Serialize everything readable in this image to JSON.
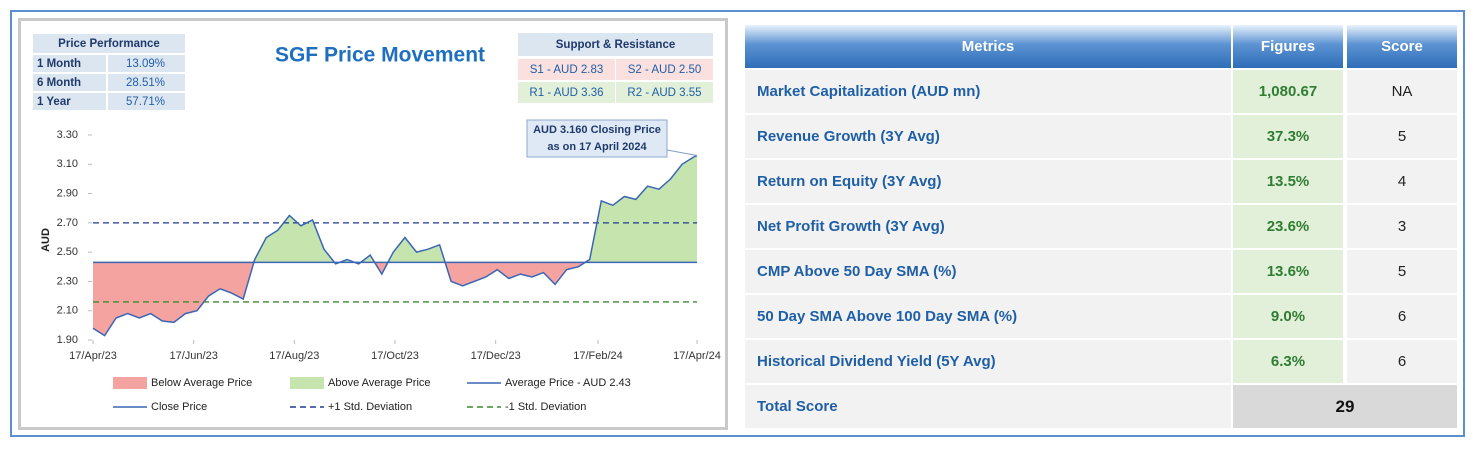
{
  "chart_data": {
    "type": "line",
    "title": "SGF Price Movement",
    "y_label": "AUD",
    "annotation": [
      "AUD 3.160 Closing Price",
      "as on 17 April 2024"
    ],
    "x": [
      "2023-04-17",
      "2023-04-24",
      "2023-05-01",
      "2023-05-08",
      "2023-05-15",
      "2023-05-22",
      "2023-05-29",
      "2023-06-05",
      "2023-06-12",
      "2023-06-19",
      "2023-06-26",
      "2023-07-03",
      "2023-07-10",
      "2023-07-17",
      "2023-07-24",
      "2023-07-31",
      "2023-08-07",
      "2023-08-14",
      "2023-08-21",
      "2023-08-28",
      "2023-09-04",
      "2023-09-11",
      "2023-09-18",
      "2023-09-25",
      "2023-10-02",
      "2023-10-09",
      "2023-10-16",
      "2023-10-23",
      "2023-10-30",
      "2023-11-06",
      "2023-11-13",
      "2023-11-20",
      "2023-11-27",
      "2023-12-04",
      "2023-12-11",
      "2023-12-18",
      "2023-12-25",
      "2024-01-01",
      "2024-01-08",
      "2024-01-15",
      "2024-01-22",
      "2024-01-29",
      "2024-02-05",
      "2024-02-12",
      "2024-02-19",
      "2024-02-26",
      "2024-03-04",
      "2024-03-11",
      "2024-03-18",
      "2024-03-25",
      "2024-04-01",
      "2024-04-08",
      "2024-04-15",
      "2024-04-17"
    ],
    "series": [
      {
        "name": "Close Price",
        "color": "#3a66b5",
        "values": [
          1.98,
          1.93,
          2.05,
          2.08,
          2.05,
          2.08,
          2.03,
          2.02,
          2.08,
          2.1,
          2.2,
          2.25,
          2.22,
          2.18,
          2.45,
          2.6,
          2.65,
          2.75,
          2.68,
          2.72,
          2.52,
          2.42,
          2.45,
          2.42,
          2.48,
          2.35,
          2.5,
          2.6,
          2.5,
          2.52,
          2.55,
          2.3,
          2.27,
          2.3,
          2.33,
          2.38,
          2.32,
          2.35,
          2.33,
          2.36,
          2.28,
          2.38,
          2.4,
          2.45,
          2.85,
          2.82,
          2.88,
          2.86,
          2.95,
          2.93,
          3.0,
          3.1,
          3.15,
          3.16
        ]
      }
    ],
    "fills": [
      {
        "name": "Below Average Price",
        "color": "#f4a3a0"
      },
      {
        "name": "Above Average Price",
        "color": "#c6e4ad"
      }
    ],
    "reference_lines": [
      {
        "name": "Average Price - AUD 2.43",
        "value": 2.43,
        "color": "#3a66b5",
        "dashed": false
      },
      {
        "name": "+1 Std. Deviation",
        "value": 2.7,
        "color": "#1f3a8a",
        "dashed": true
      },
      {
        "name": "-1 Std. Deviation",
        "value": 2.16,
        "color": "#3d8a2e",
        "dashed": true
      }
    ],
    "xlim": [
      "2023-04-17",
      "2024-04-17"
    ],
    "xticks": [
      {
        "value": "2023-04-17",
        "label": "17/Apr/23"
      },
      {
        "value": "2023-06-17",
        "label": "17/Jun/23"
      },
      {
        "value": "2023-08-17",
        "label": "17/Aug/23"
      },
      {
        "value": "2023-10-17",
        "label": "17/Oct/23"
      },
      {
        "value": "2023-12-17",
        "label": "17/Dec/23"
      },
      {
        "value": "2024-02-17",
        "label": "17/Feb/24"
      },
      {
        "value": "2024-04-17",
        "label": "17/Apr/24"
      }
    ],
    "ylim": [
      1.9,
      3.3
    ],
    "yticks": [
      {
        "value": 1.9,
        "label": "1.90"
      },
      {
        "value": 2.1,
        "label": "2.10"
      },
      {
        "value": 2.3,
        "label": "2.30"
      },
      {
        "value": 2.5,
        "label": "2.50"
      },
      {
        "value": 2.7,
        "label": "2.70"
      },
      {
        "value": 2.9,
        "label": "2.90"
      },
      {
        "value": 3.1,
        "label": "3.10"
      },
      {
        "value": 3.3,
        "label": "3.30"
      }
    ],
    "grid": false
  },
  "price_performance": {
    "title": "Price Performance",
    "rows": [
      [
        "1 Month",
        "13.09%"
      ],
      [
        "6 Month",
        "28.51%"
      ],
      [
        "1 Year",
        "57.71%"
      ]
    ]
  },
  "support_resistance": {
    "title": "Support & Resistance",
    "rows": [
      [
        "S1 - AUD 2.83",
        "S2 - AUD 2.50"
      ],
      [
        "R1 - AUD 3.36",
        "R2 - AUD 3.55"
      ]
    ]
  },
  "metrics_table": {
    "header": [
      "Metrics",
      "Figures",
      "Score"
    ],
    "rows": [
      [
        "Market Capitalization (AUD mn)",
        "1,080.67",
        "NA"
      ],
      [
        "Revenue Growth (3Y Avg)",
        "37.3%",
        "5"
      ],
      [
        "Return on Equity (3Y Avg)",
        "13.5%",
        "4"
      ],
      [
        "Net Profit Growth (3Y Avg)",
        "23.6%",
        "3"
      ],
      [
        "CMP Above 50 Day SMA (%)",
        "13.6%",
        "5"
      ],
      [
        "50 Day SMA Above 100 Day SMA (%)",
        "9.0%",
        "6"
      ],
      [
        "Historical Dividend Yield (5Y Avg)",
        "6.3%",
        "6"
      ]
    ],
    "total_label": "Total Score",
    "total": "29"
  }
}
